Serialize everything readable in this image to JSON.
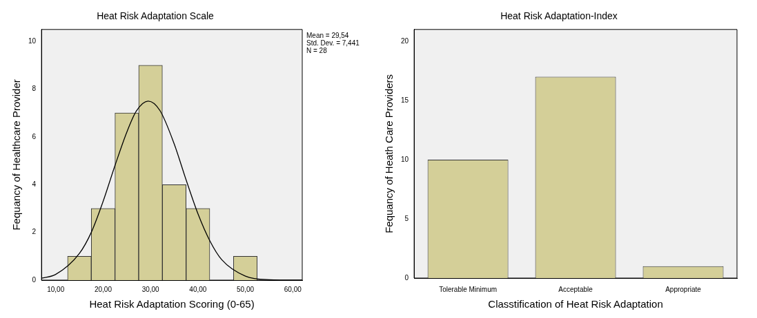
{
  "chart_data": [
    {
      "type": "histogram",
      "title": "Heat Risk Adaptation Scale",
      "xlabel": "Heat Risk Adaptation Scoring (0-65)",
      "ylabel": "Fequancy of Healthcare Provider",
      "bins": [
        12.5,
        17.5,
        22.5,
        27.5,
        32.5,
        37.5,
        42.5,
        47.5,
        52.5
      ],
      "values": [
        1,
        3,
        7,
        9,
        4,
        3,
        0,
        1
      ],
      "color": "#d4cf98",
      "series": [
        {
          "type": "line",
          "color": "#000000",
          "marker": "none",
          "x": [
            7,
            10,
            15,
            17.5,
            20,
            22.5,
            25,
            27,
            29.5,
            32,
            35,
            37.5,
            40,
            42.5,
            45,
            50,
            55,
            62
          ],
          "values": [
            0.08,
            0.24,
            1.12,
            2.0,
            3.3,
            4.8,
            6.2,
            7.08,
            7.5,
            7.1,
            5.7,
            4.2,
            2.78,
            1.65,
            0.86,
            0.17,
            0.02,
            0
          ]
        }
      ],
      "xlim": [
        7,
        62
      ],
      "xticks": [
        {
          "value": 10,
          "label": "10,00"
        },
        {
          "value": 20,
          "label": "20,00"
        },
        {
          "value": 30,
          "label": "30,00"
        },
        {
          "value": 40,
          "label": "40,00"
        },
        {
          "value": 50,
          "label": "50,00"
        },
        {
          "value": 60,
          "label": "60,00"
        }
      ],
      "ylim": [
        0,
        10.5
      ],
      "yticks": [
        0,
        2,
        4,
        6,
        8,
        10
      ],
      "annotations": [
        "Mean = 29,54",
        "Std. Dev. = 7,441",
        "N = 28"
      ],
      "grid": false,
      "legend": false
    },
    {
      "type": "bar",
      "title": "Heat Risk Adaptation-Index",
      "xlabel": "Classtification of Heat Risk Adaptation",
      "ylabel": "Fequancy of Heath Care Providers",
      "categories": [
        "Tolerable Minimum",
        "Acceptable",
        "Appropriate"
      ],
      "values": [
        10,
        17,
        1
      ],
      "color": "#d4cf98",
      "ylim": [
        0,
        21
      ],
      "yticks": [
        0,
        5,
        10,
        15,
        20
      ],
      "grid": false,
      "legend": false
    }
  ]
}
